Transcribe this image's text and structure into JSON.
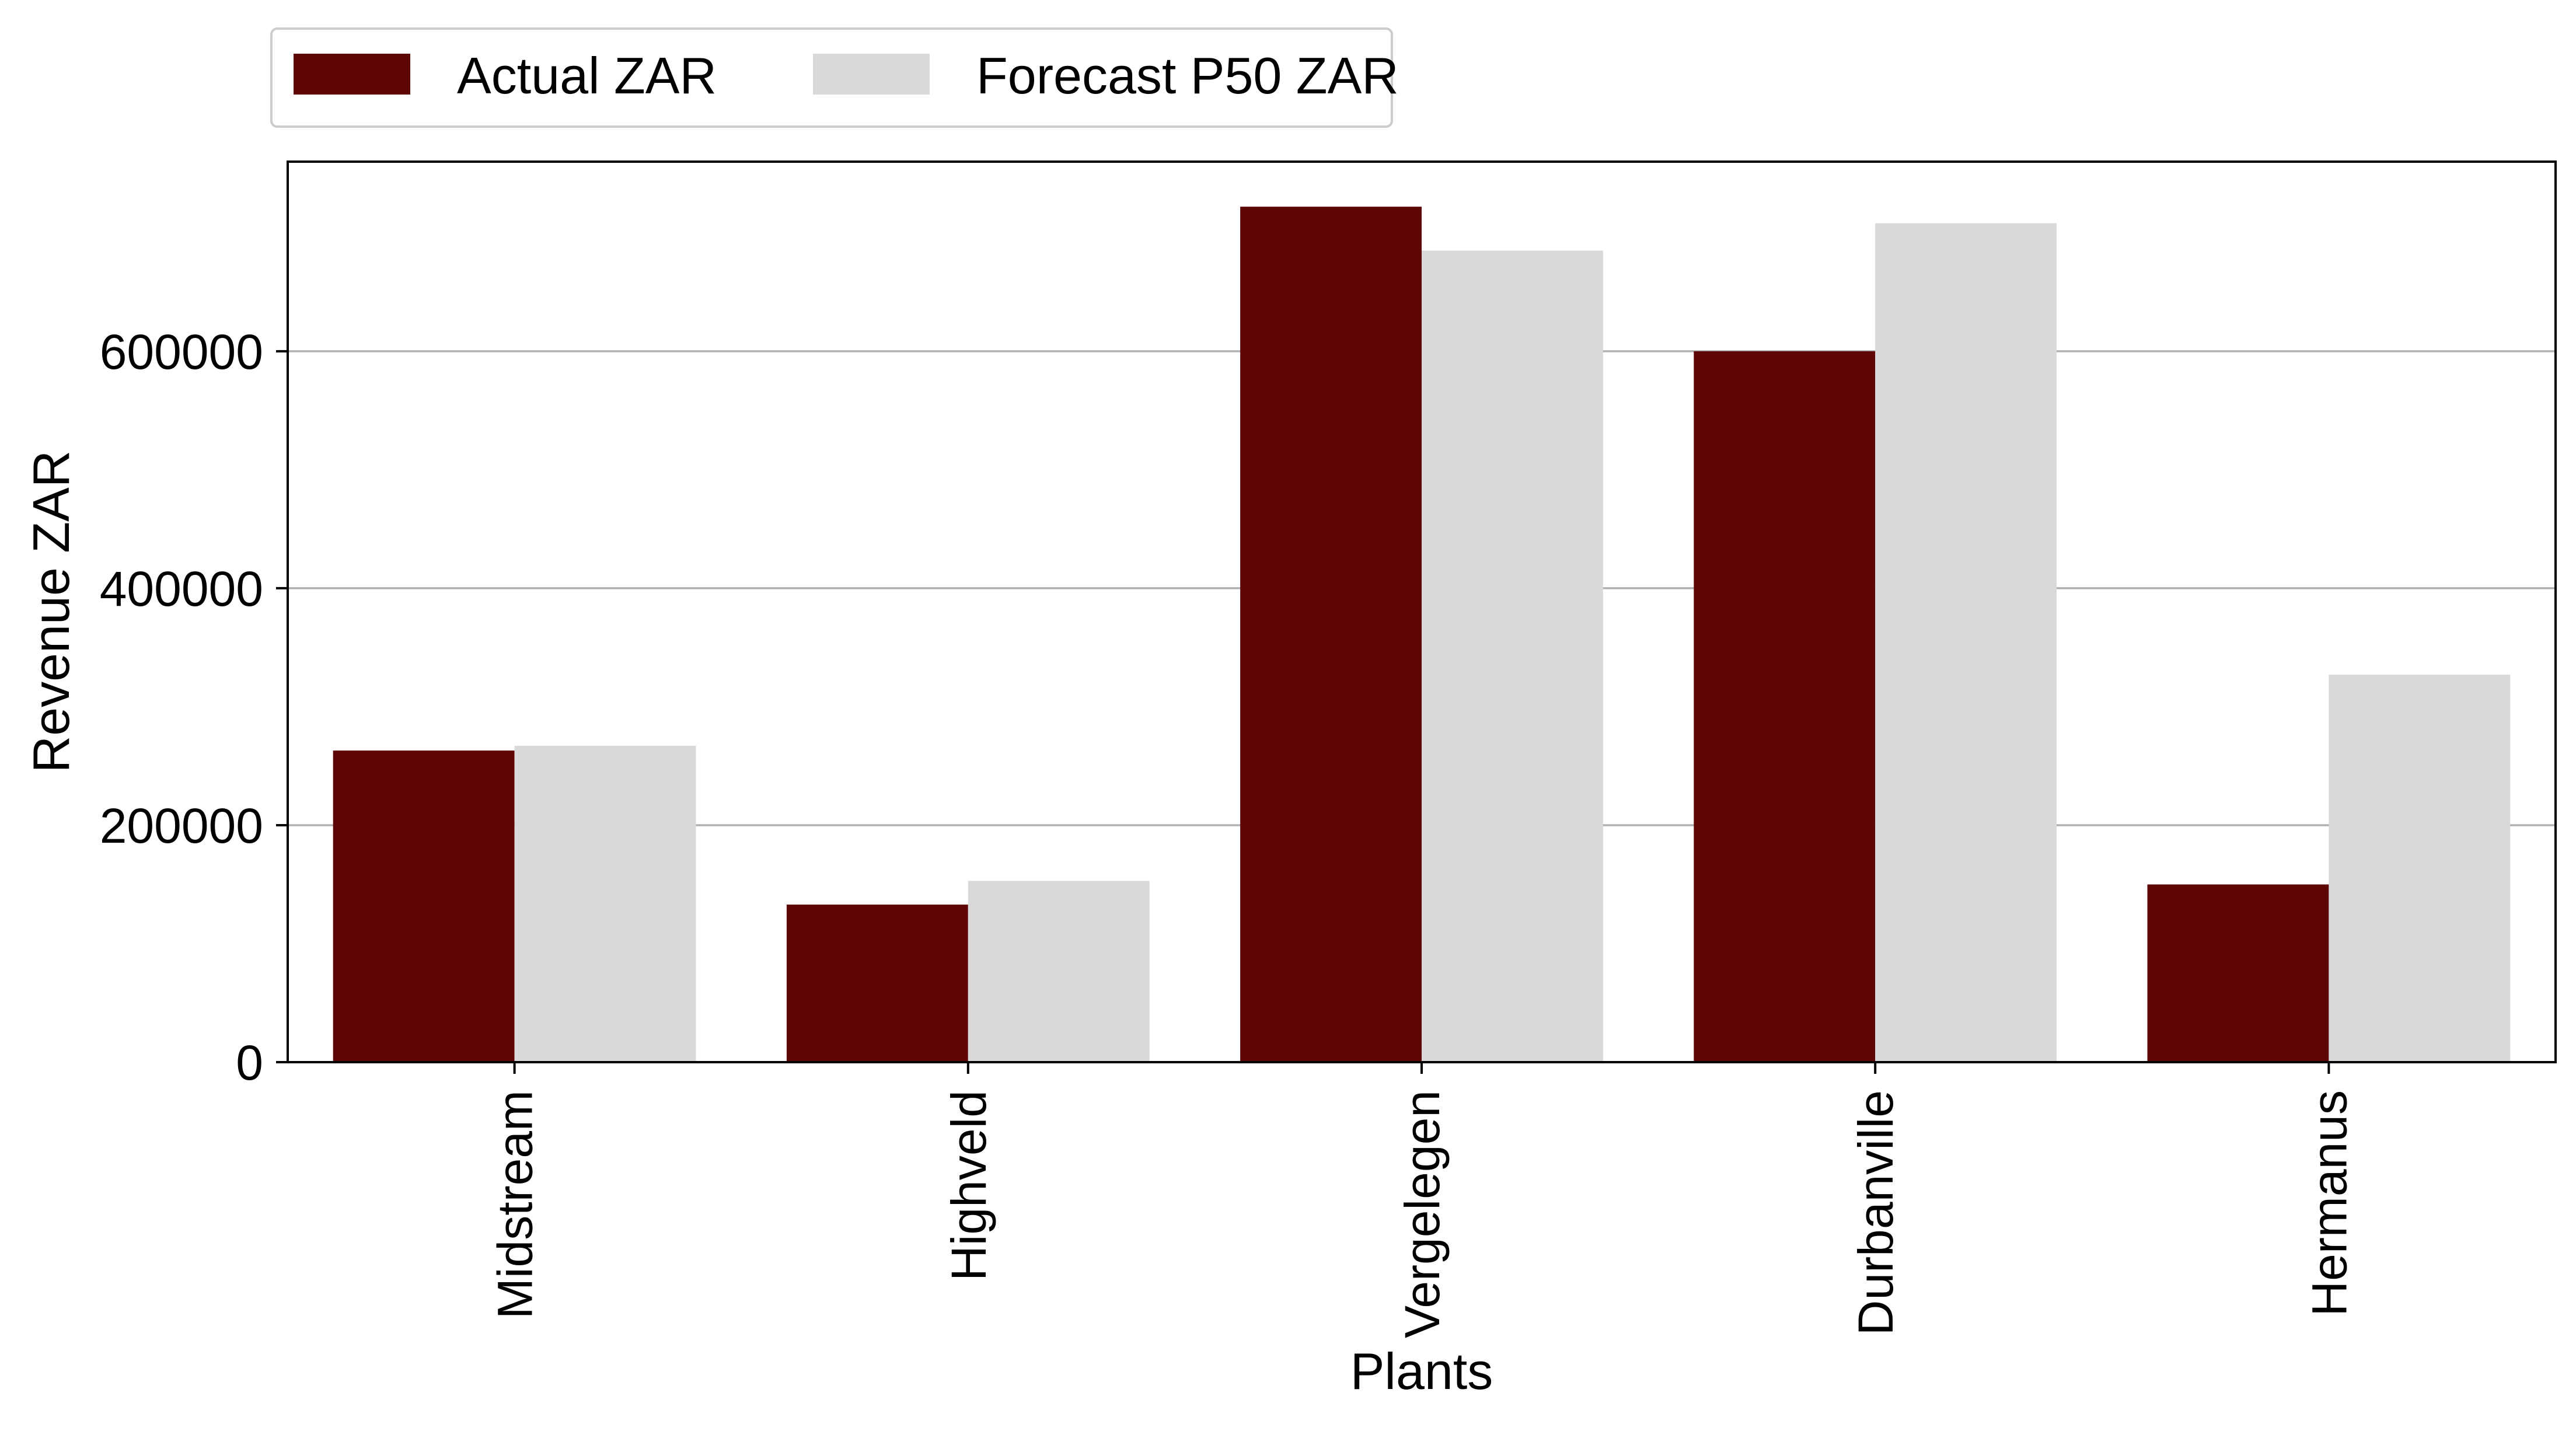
{
  "chart_data": {
    "type": "bar",
    "title": "",
    "xlabel": "Plants",
    "ylabel": "Revenue ZAR",
    "categories": [
      "Midstream",
      "Highveld",
      "Vergelegen",
      "Durbanville",
      "Hermanus"
    ],
    "series": [
      {
        "name": "Actual ZAR",
        "color": "#5e0606",
        "values": [
          263000,
          133000,
          722000,
          600000,
          150000
        ]
      },
      {
        "name": "Forecast P50 ZAR",
        "color": "#d9d9d9",
        "values": [
          267000,
          153000,
          685000,
          708000,
          327000
        ]
      }
    ],
    "ylim": [
      0,
      760000
    ],
    "yticks": [
      0,
      200000,
      400000,
      600000
    ],
    "ytick_labels": [
      "0",
      "200000",
      "400000",
      "600000"
    ],
    "grid": "horizontal",
    "grid_color": "#b0b0b0",
    "legend_position": "top-left, above plot"
  }
}
